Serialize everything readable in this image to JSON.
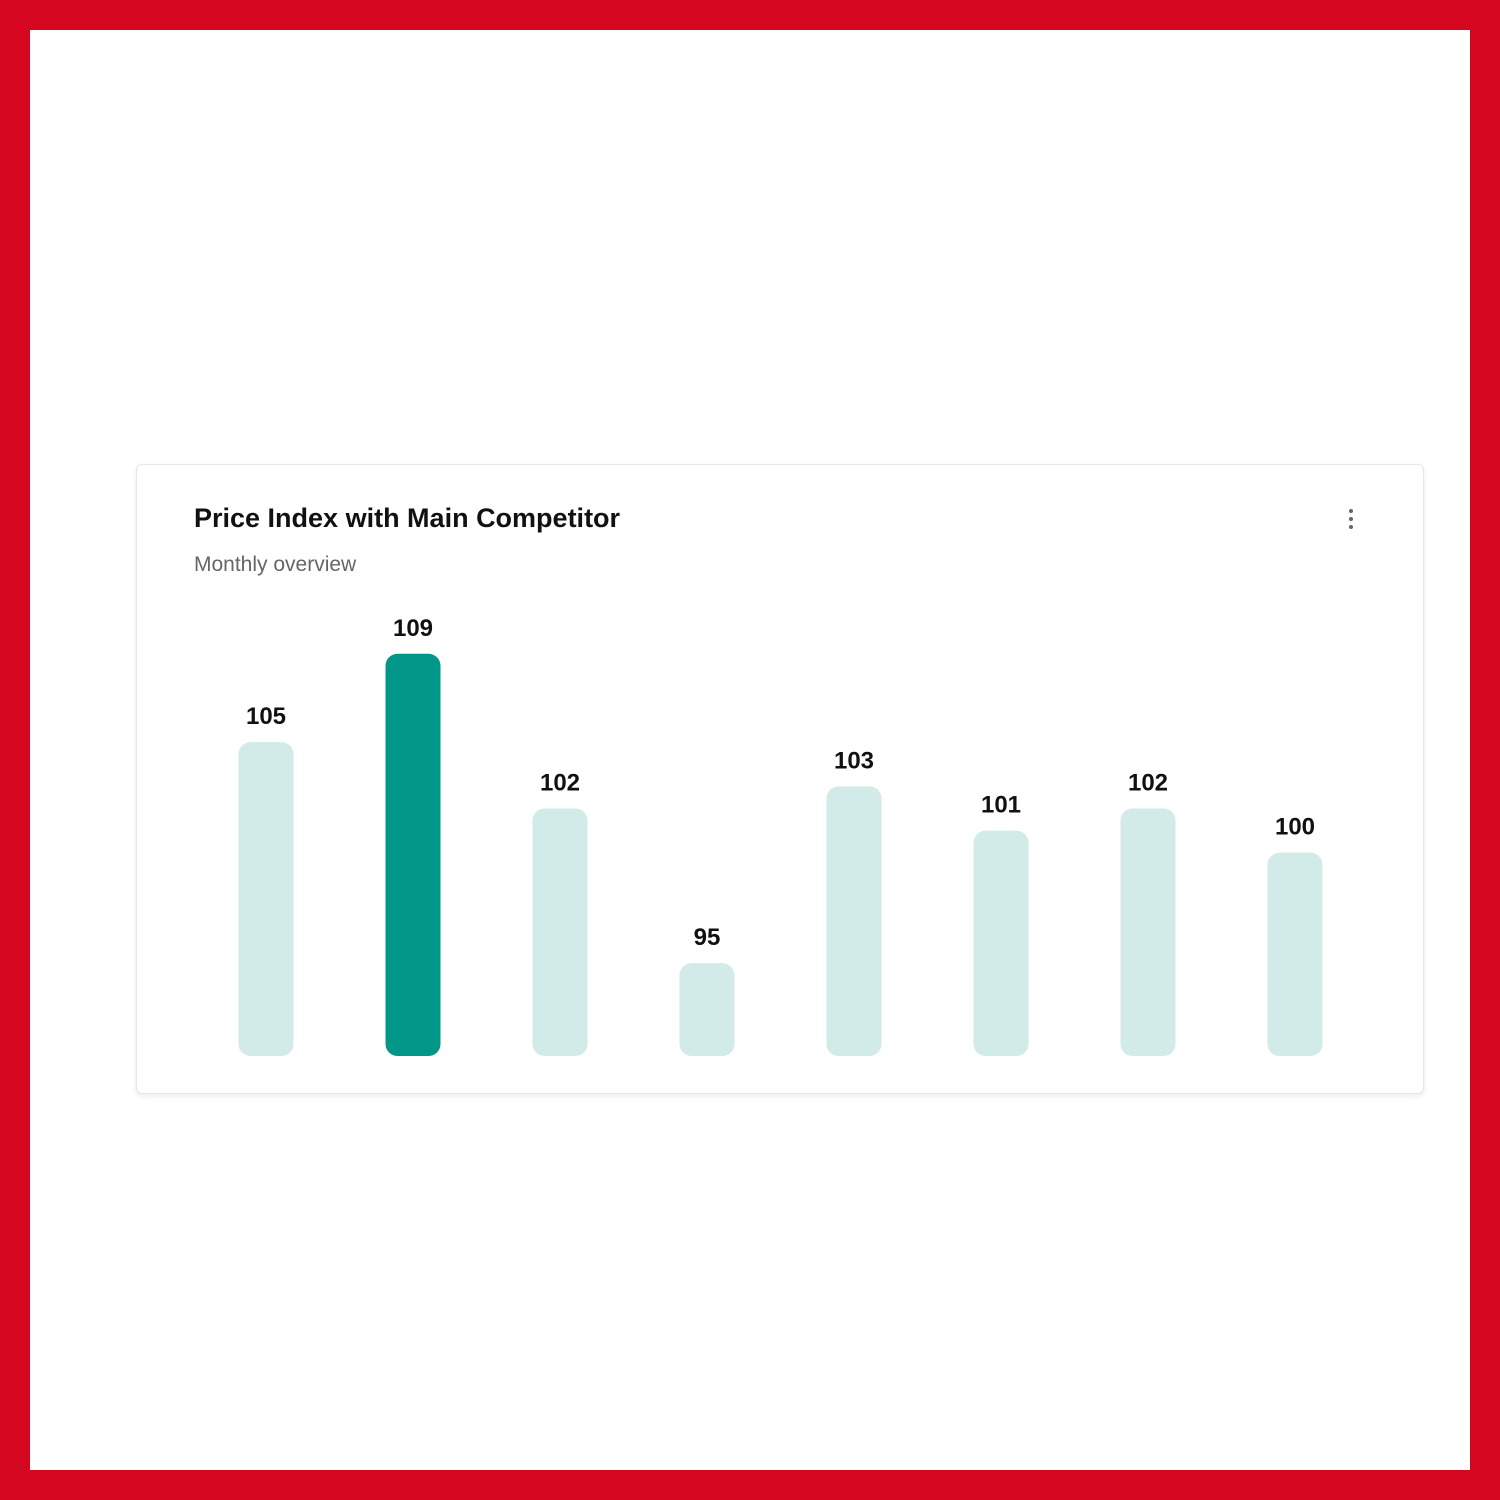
{
  "card": {
    "title": "Price Index with Main Competitor",
    "subtitle": "Monthly overview",
    "menu_icon": "more-vertical-icon"
  },
  "chart_data": {
    "type": "bar",
    "title": "Price Index with Main Competitor",
    "subtitle": "Monthly overview",
    "categories": [
      "",
      "",
      "",
      "",
      "",
      "",
      "",
      ""
    ],
    "values": [
      105,
      109,
      102,
      95,
      103,
      101,
      102,
      100
    ],
    "data_labels": [
      "105",
      "109",
      "102",
      "95",
      "103",
      "101",
      "102",
      "100"
    ],
    "highlight_index": 1,
    "colors": {
      "bar": "#d3ebe8",
      "highlight": "#009688"
    },
    "grid": false,
    "axes_visible": false
  }
}
